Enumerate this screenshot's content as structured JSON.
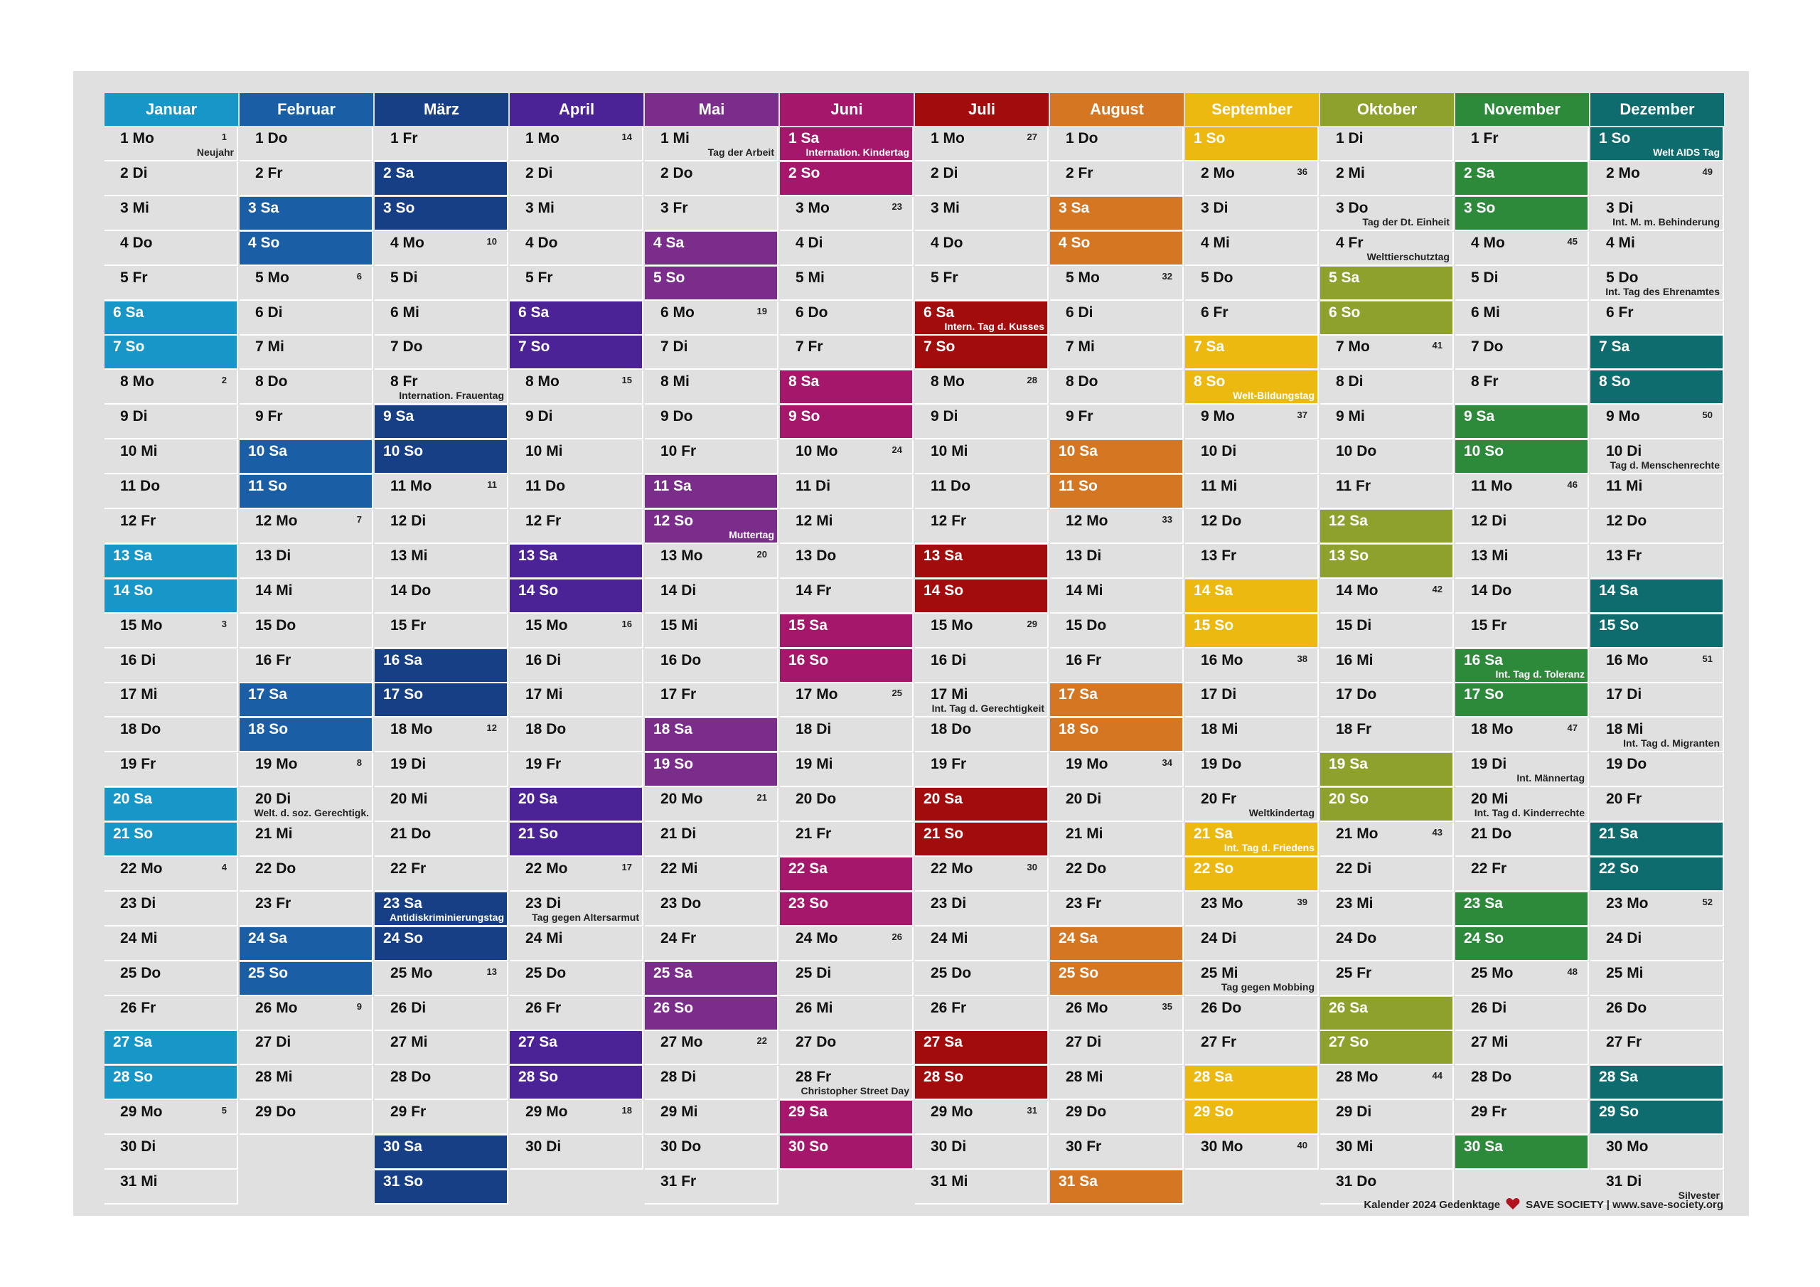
{
  "footer": {
    "left": "Kalender 2024 Gedenktage",
    "right": "SAVE SOCIETY | www.save-society.org"
  },
  "colors": {
    "heart": "#b3121f"
  },
  "months": [
    {
      "name": "Januar",
      "color": "#1797c7",
      "start": 1,
      "days": 31,
      "weeks": {
        "1": "1",
        "8": "2",
        "15": "3",
        "22": "4",
        "29": "5"
      },
      "notes": {
        "1": "Neujahr"
      }
    },
    {
      "name": "Februar",
      "color": "#1a5ea6",
      "start": 4,
      "days": 29,
      "weeks": {
        "5": "6",
        "12": "7",
        "19": "8",
        "26": "9"
      },
      "notes": {
        "20": "Welt. d. soz. Gerechtigk."
      }
    },
    {
      "name": "März",
      "color": "#163f86",
      "start": 5,
      "days": 31,
      "weeks": {
        "4": "10",
        "11": "11",
        "18": "12",
        "25": "13"
      },
      "notes": {
        "8": "Internation. Frauentag",
        "23": "Antidiskriminierungstag"
      }
    },
    {
      "name": "April",
      "color": "#4b2396",
      "start": 1,
      "days": 30,
      "weeks": {
        "1": "14",
        "8": "15",
        "15": "16",
        "22": "17",
        "29": "18"
      },
      "notes": {
        "23": "Tag gegen Altersarmut"
      }
    },
    {
      "name": "Mai",
      "color": "#7b2d8b",
      "start": 3,
      "days": 31,
      "weeks": {
        "6": "19",
        "13": "20",
        "20": "21",
        "27": "22"
      },
      "notes": {
        "1": "Tag der Arbeit",
        "12": "Muttertag"
      }
    },
    {
      "name": "Juni",
      "color": "#a5176b",
      "start": 6,
      "days": 30,
      "weeks": {
        "3": "23",
        "10": "24",
        "17": "25",
        "24": "26"
      },
      "notes": {
        "1": "Internation. Kindertag",
        "28": "Christopher Street Day"
      }
    },
    {
      "name": "Juli",
      "color": "#a30c0c",
      "start": 1,
      "days": 31,
      "weeks": {
        "1": "27",
        "8": "28",
        "15": "29",
        "22": "30",
        "29": "31"
      },
      "notes": {
        "6": "Intern. Tag d. Kusses",
        "17": "Int. Tag d. Gerechtigkeit"
      }
    },
    {
      "name": "August",
      "color": "#d57622",
      "start": 4,
      "days": 31,
      "weeks": {
        "5": "32",
        "12": "33",
        "19": "34",
        "26": "35"
      },
      "notes": {}
    },
    {
      "name": "September",
      "color": "#ecb910",
      "start": 7,
      "days": 30,
      "weeks": {
        "2": "36",
        "9": "37",
        "16": "38",
        "23": "39",
        "30": "40"
      },
      "notes": {
        "8": "Welt-Bildungstag",
        "20": "Weltkindertag",
        "21": "Int. Tag d. Friedens",
        "25": "Tag gegen Mobbing"
      }
    },
    {
      "name": "Oktober",
      "color": "#8fa12d",
      "start": 2,
      "days": 31,
      "weeks": {
        "7": "41",
        "14": "42",
        "21": "43",
        "28": "44"
      },
      "notes": {
        "3": "Tag der Dt. Einheit",
        "4": "Welttierschutztag"
      }
    },
    {
      "name": "November",
      "color": "#2d8a3a",
      "start": 5,
      "days": 30,
      "weeks": {
        "4": "45",
        "11": "46",
        "18": "47",
        "25": "48"
      },
      "notes": {
        "16": "Int. Tag d. Toleranz",
        "19": "Int. Männertag",
        "20": "Int. Tag d. Kinderrechte"
      }
    },
    {
      "name": "Dezember",
      "color": "#0e6b6e",
      "start": 7,
      "days": 31,
      "weeks": {
        "2": "49",
        "9": "50",
        "16": "51",
        "23": "52"
      },
      "notes": {
        "1": "Welt AIDS Tag",
        "3": "Int. M. m. Behinderung",
        "5": "Int. Tag des Ehrenamtes",
        "10": "Tag d. Menschenrechte",
        "18": "Int. Tag d. Migranten",
        "31": "Silvester"
      }
    }
  ],
  "weekdays": [
    "Mo",
    "Di",
    "Mi",
    "Do",
    "Fr",
    "Sa",
    "So"
  ]
}
